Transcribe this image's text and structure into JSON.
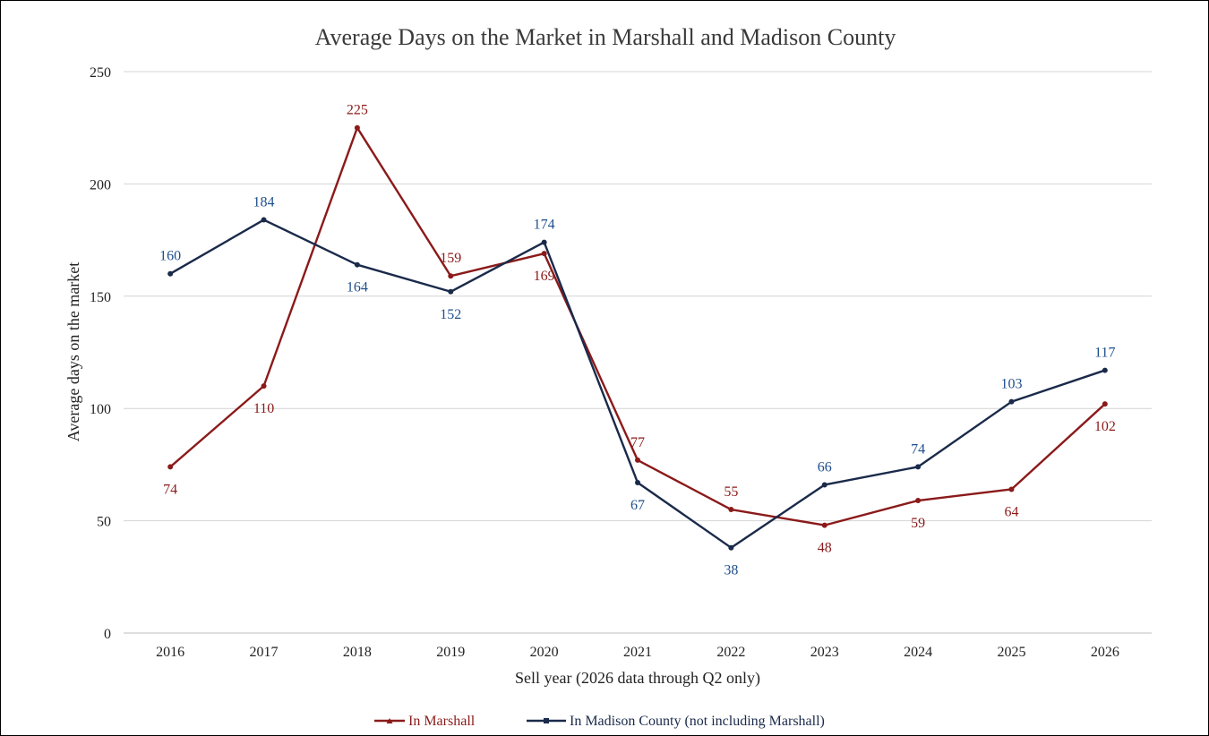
{
  "chart_data": {
    "type": "line",
    "title": "Average Days on the Market in Marshall and Madison County",
    "xlabel": "Sell year (2026 data through Q2 only)",
    "ylabel": "Average days on the market",
    "categories": [
      "2016",
      "2017",
      "2018",
      "2019",
      "2020",
      "2021",
      "2022",
      "2023",
      "2024",
      "2025",
      "2026"
    ],
    "ylim": [
      0,
      250
    ],
    "yticks": [
      0,
      50,
      100,
      150,
      200,
      250
    ],
    "grid": true,
    "legend_position": "bottom",
    "series": [
      {
        "name": "In Marshall",
        "color": "#8b1a1a",
        "marker": "triangle",
        "values": [
          74,
          110,
          225,
          159,
          169,
          77,
          55,
          48,
          59,
          64,
          102
        ],
        "labels": [
          "74",
          "110",
          "225",
          "159",
          "169",
          "77",
          "55",
          "48",
          "59",
          "64",
          "102"
        ]
      },
      {
        "name": "In Madison County (not including Marshall)",
        "color": "#1a2a4a",
        "label_color": "#1f4e8c",
        "marker": "square",
        "values": [
          160,
          184,
          164,
          152,
          174,
          67,
          38,
          66,
          74,
          103,
          117
        ],
        "labels": [
          "160",
          "184",
          "164",
          "152",
          "174",
          "67",
          "38",
          "66",
          "74",
          "103",
          "117"
        ]
      }
    ]
  }
}
